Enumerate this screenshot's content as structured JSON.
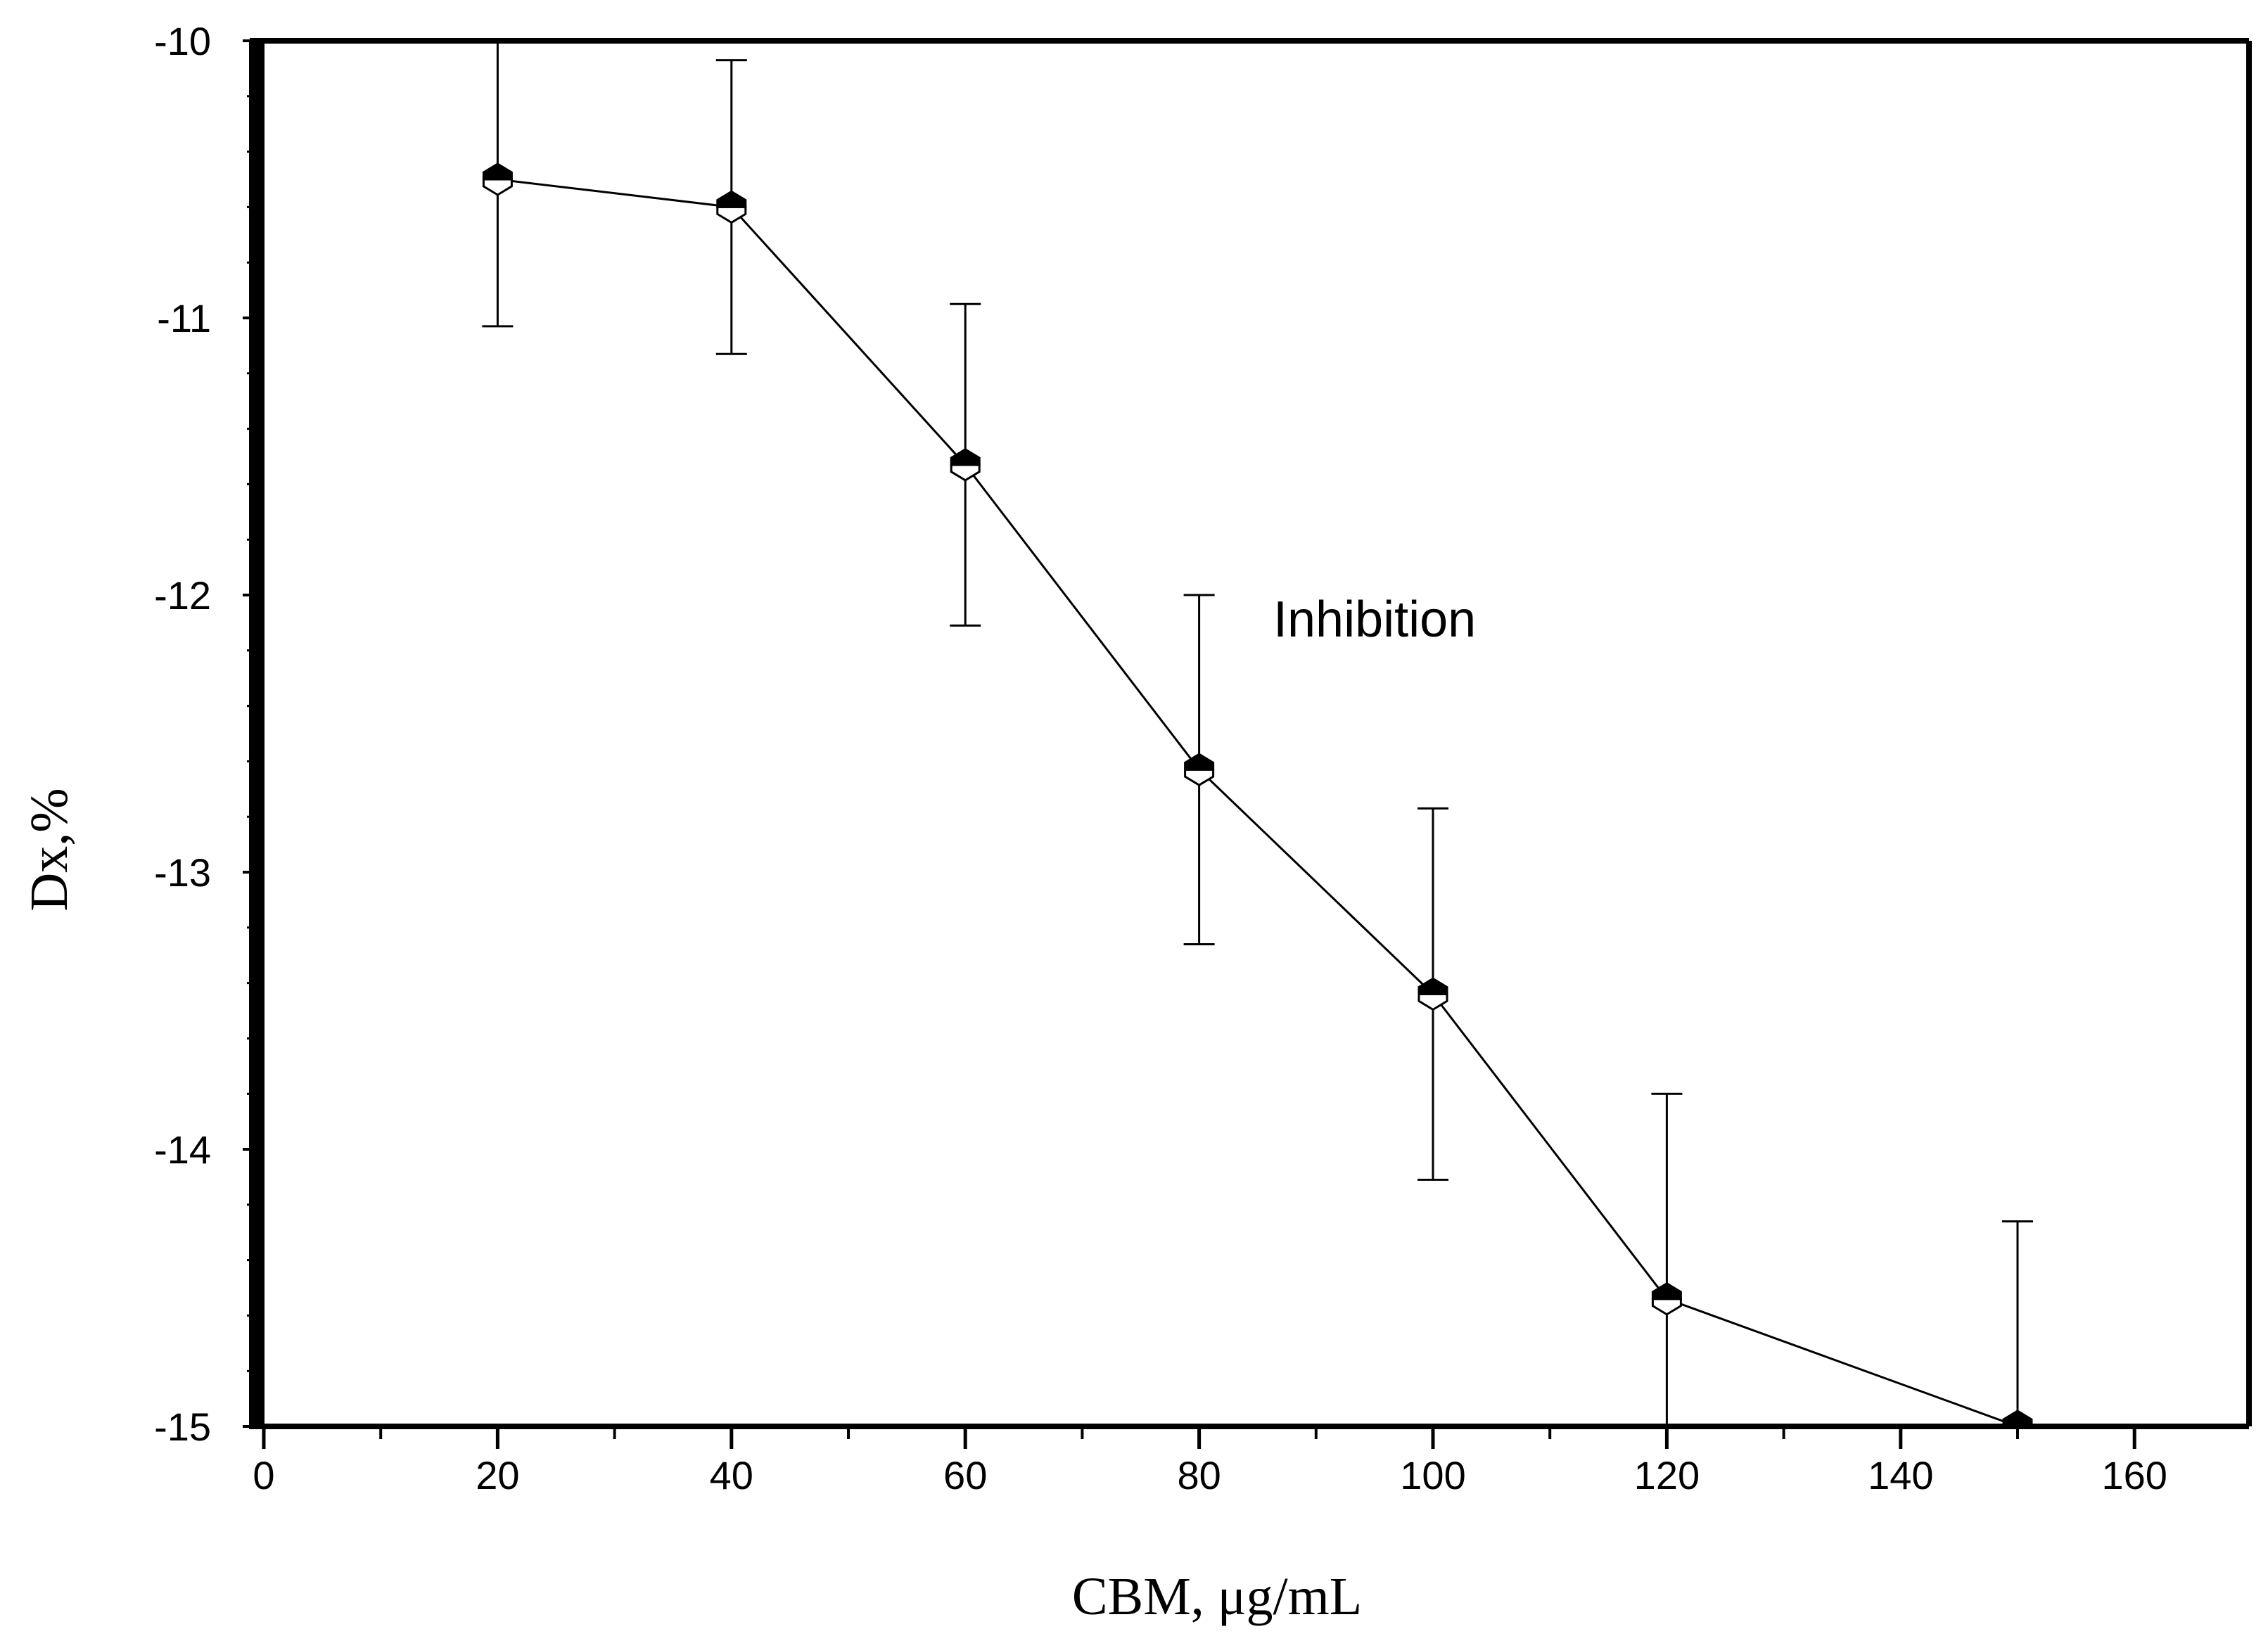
{
  "chart_data": {
    "type": "line",
    "title": "",
    "xlabel": "CBM, μg/mL",
    "ylabel": "Dx,%",
    "xlim": [
      0,
      170
    ],
    "ylim": [
      -15,
      -10
    ],
    "x_ticks": [
      0,
      20,
      40,
      60,
      80,
      100,
      120,
      140,
      160
    ],
    "y_ticks": [
      -10,
      -11,
      -12,
      -13,
      -14,
      -15
    ],
    "x_minor_step": 10,
    "y_minor_step": 0.2,
    "grid": false,
    "legend": "none",
    "annotations": [
      {
        "text": "Inhibition",
        "x": 98,
        "y": -12.16
      }
    ],
    "series": [
      {
        "x": [
          20,
          40,
          60,
          80,
          100,
          120,
          150
        ],
        "y": [
          -10.5,
          -10.6,
          -11.53,
          -12.63,
          -13.44,
          -14.54,
          -15.0
        ],
        "error": [
          0.53,
          0.53,
          0.58,
          0.63,
          0.67,
          0.74,
          0.74
        ],
        "marker": "half-filled-hexagon",
        "color": "#000000"
      }
    ]
  }
}
